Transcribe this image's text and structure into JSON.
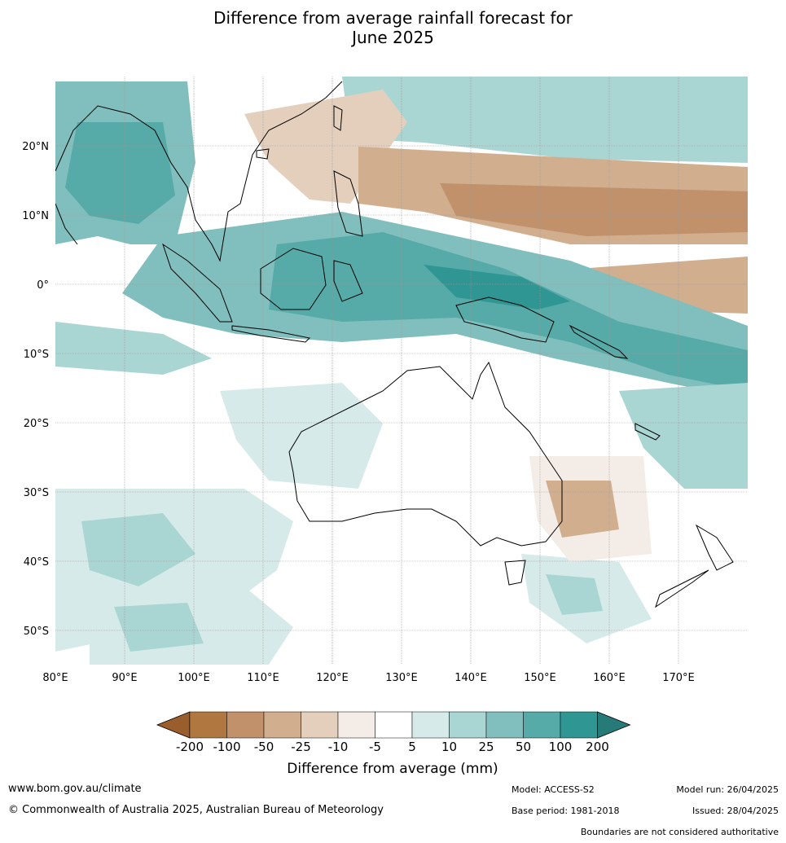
{
  "title": {
    "line1": "Difference from average rainfall forecast for",
    "line2": "June 2025"
  },
  "map": {
    "lat_labels": [
      "20°N",
      "10°N",
      "0°",
      "10°S",
      "20°S",
      "30°S",
      "40°S",
      "50°S"
    ],
    "lon_labels": [
      "80°E",
      "90°E",
      "100°E",
      "110°E",
      "120°E",
      "130°E",
      "140°E",
      "150°E",
      "160°E",
      "170°E"
    ]
  },
  "colorbar": {
    "title": "Difference from average (mm)",
    "tick_labels": [
      "-200",
      "-100",
      "-50",
      "-25",
      "-10",
      "-5",
      "5",
      "10",
      "25",
      "50",
      "100",
      "200"
    ],
    "colors": [
      "#9a5e2c",
      "#b07840",
      "#c0916a",
      "#d1ae8e",
      "#e4cfbd",
      "#f4ece6",
      "#ffffff",
      "#d6ebe9",
      "#a9d5d3",
      "#80bfbd",
      "#56aaa8",
      "#2f9693",
      "#267a78"
    ]
  },
  "footer": {
    "url": "www.bom.gov.au/climate",
    "copyright": "© Commonwealth of Australia 2025, Australian Bureau of Meteorology",
    "model": "Model: ACCESS-S2",
    "base_period": "Base period: 1981-2018",
    "model_run": "Model run: 26/04/2025",
    "issued": "Issued: 28/04/2025",
    "disclaimer": "Boundaries are not considered authoritative"
  }
}
